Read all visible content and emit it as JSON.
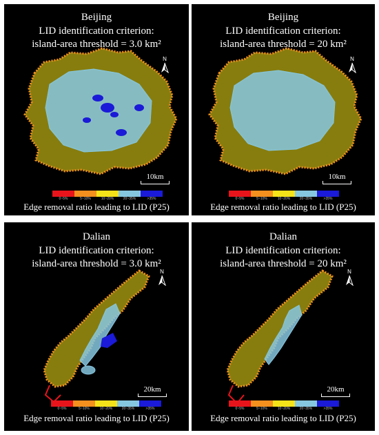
{
  "panels": [
    {
      "id": "bj-30",
      "city": "Beijing",
      "criterion": "LID identification criterion:",
      "threshold": "island-area threshold = 3.0 km²",
      "scale": "10km",
      "north": "N"
    },
    {
      "id": "bj-20",
      "city": "Beijing",
      "criterion": "LID identification criterion:",
      "threshold": "island-area threshold =  20 km²",
      "scale": "10km",
      "north": "N"
    },
    {
      "id": "dl-30",
      "city": "Dalian",
      "criterion": "LID identification criterion:",
      "threshold": "island-area threshold = 3.0 km²",
      "scale": "20km",
      "north": "N"
    },
    {
      "id": "dl-20",
      "city": "Dalian",
      "criterion": "LID identification criterion:",
      "threshold": "island-area threshold =  20 km²",
      "scale": "20km",
      "north": "N"
    }
  ],
  "legend": {
    "title": "Edge removal ratio leading to LID (P25)",
    "classes": [
      {
        "label": "0~5%",
        "color": "#e8141c"
      },
      {
        "label": "5~10%",
        "color": "#f4901e"
      },
      {
        "label": "10~20%",
        "color": "#f5e31a"
      },
      {
        "label": "20~35%",
        "color": "#86c7e0"
      },
      {
        "label": ">35%",
        "color": "#1a1ad8"
      }
    ]
  }
}
